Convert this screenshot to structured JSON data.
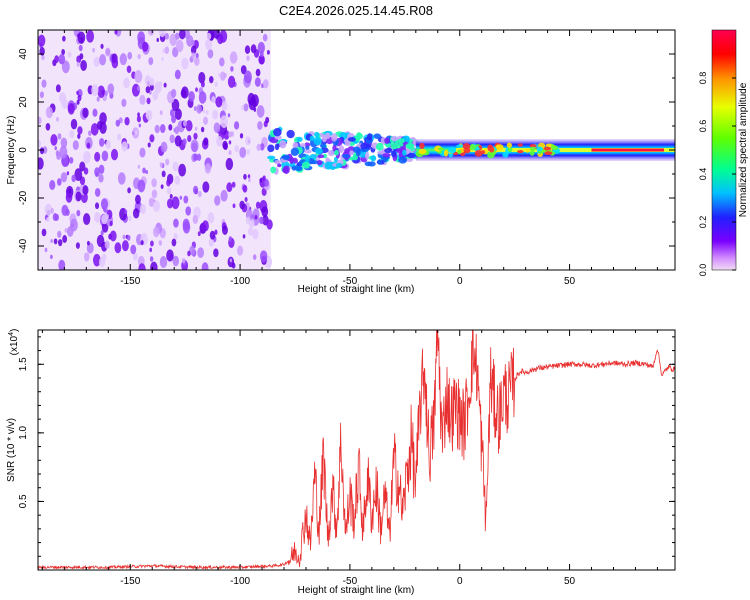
{
  "figure": {
    "title": "C2E4.2026.025.14.45.R08"
  },
  "chart_data": [
    {
      "type": "heatmap",
      "name": "spectrogram",
      "title": "C2E4.2026.025.14.45.R08",
      "xlabel": "Height of straight line (km)",
      "ylabel": "Frequency (Hz)",
      "xlim": [
        -192,
        98
      ],
      "ylim": [
        -50,
        50
      ],
      "x_ticks": [
        -150,
        -100,
        -50,
        0,
        50
      ],
      "y_ticks": [
        -40,
        -20,
        0,
        20,
        40
      ],
      "colorbar": {
        "label": "Normalized spectral amplitude",
        "range": [
          0.0,
          1.0
        ],
        "ticks": [
          "0.0",
          "0.2",
          "0.4",
          "0.6",
          "0.8"
        ],
        "tick_values": [
          0.0,
          0.2,
          0.4,
          0.6,
          0.8
        ],
        "colors": [
          "#f2dcf2",
          "#d28cff",
          "#7a00ff",
          "#2020ff",
          "#00c0ff",
          "#00ff90",
          "#60ff00",
          "#e8ff00",
          "#ff9000",
          "#ff0000",
          "#ff0050"
        ]
      },
      "regions": [
        {
          "x_range": [
            -192,
            -86
          ],
          "description_value": 0.15
        },
        {
          "x_range": [
            -86,
            -20
          ],
          "center_hz": 0,
          "amplitude": 0.35
        },
        {
          "x_range": [
            -20,
            98
          ],
          "center_hz": 0,
          "amplitude": 0.85
        }
      ]
    },
    {
      "type": "line",
      "name": "snr",
      "xlabel": "Height of straight line (km)",
      "ylabel": "SNR (10 * v/v)",
      "y_scale_label": "(x10",
      "y_scale_exp": "4",
      "y_scale_close": ")",
      "xlim": [
        -192,
        98
      ],
      "ylim": [
        0,
        1.75
      ],
      "x_ticks": [
        -150,
        -100,
        -50,
        0,
        50
      ],
      "y_ticks": [
        "0.5",
        "1.0",
        "1.5"
      ],
      "y_tick_values": [
        0.5,
        1.0,
        1.5
      ],
      "color": "#e83030",
      "series": [
        {
          "name": "SNR",
          "x": [
            -192,
            -180,
            -160,
            -140,
            -120,
            -100,
            -85,
            -80,
            -77,
            -75,
            -73,
            -70,
            -68,
            -66,
            -64,
            -62,
            -60,
            -58,
            -56,
            -54,
            -52,
            -50,
            -48,
            -46,
            -44,
            -42,
            -40,
            -38,
            -36,
            -34,
            -32,
            -30,
            -28,
            -26,
            -24,
            -22,
            -20,
            -18,
            -16,
            -14,
            -12,
            -10,
            -8,
            -6,
            -4,
            -2,
            0,
            2,
            4,
            6,
            8,
            10,
            12,
            14,
            16,
            18,
            20,
            22,
            24,
            26,
            28,
            30,
            35,
            40,
            45,
            50,
            55,
            60,
            65,
            70,
            75,
            80,
            85,
            88,
            90,
            92,
            95,
            98
          ],
          "y": [
            0.02,
            0.02,
            0.02,
            0.03,
            0.02,
            0.02,
            0.03,
            0.04,
            0.08,
            0.14,
            0.09,
            0.42,
            0.18,
            0.7,
            0.28,
            0.85,
            0.22,
            0.6,
            0.3,
            0.95,
            0.25,
            0.55,
            0.35,
            0.75,
            0.28,
            0.68,
            0.38,
            0.62,
            0.3,
            0.55,
            0.25,
            0.78,
            0.65,
            0.42,
            0.7,
            0.95,
            0.6,
            1.2,
            1.48,
            0.85,
            1.0,
            1.75,
            0.92,
            1.3,
            1.1,
            1.2,
            1.12,
            1.05,
            1.28,
            1.6,
            1.45,
            0.9,
            0.35,
            1.4,
            1.2,
            1.1,
            1.3,
            1.25,
            1.35,
            1.42,
            1.45,
            1.44,
            1.47,
            1.48,
            1.49,
            1.5,
            1.5,
            1.49,
            1.5,
            1.51,
            1.5,
            1.51,
            1.5,
            1.48,
            1.62,
            1.42,
            1.48,
            1.46
          ]
        }
      ]
    }
  ]
}
